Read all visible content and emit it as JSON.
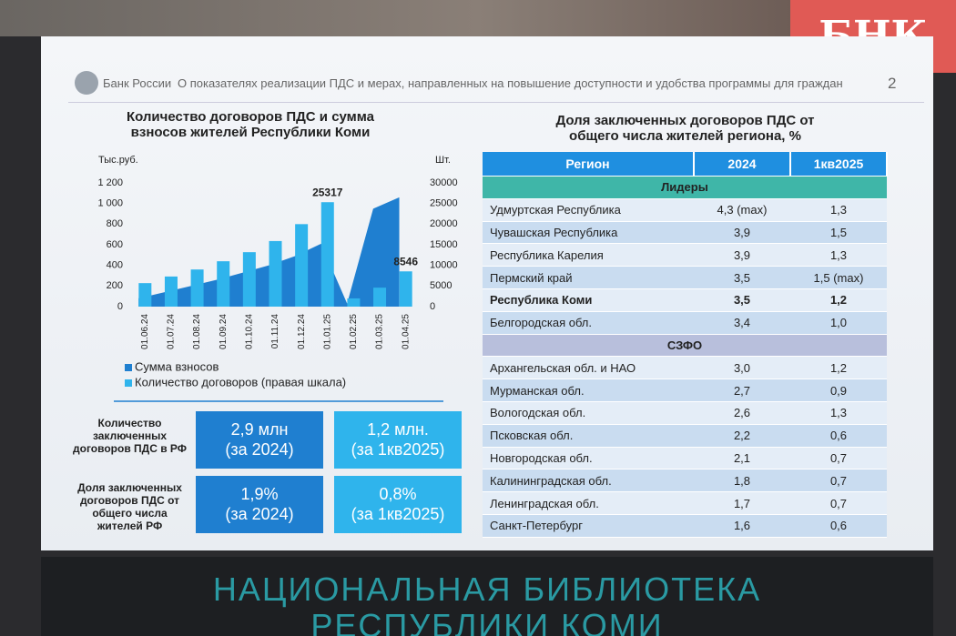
{
  "logo": "БНК",
  "slide": {
    "org": "Банк России",
    "header": "О показателях реализации ПДС и мерах, направленных на повышение доступности и удобства программы для граждан",
    "page": "2"
  },
  "chart_data": {
    "type": "combo",
    "title": "Количество договоров ПДС и сумма взносов жителей Республики Коми",
    "y_unit": "Тыс.руб.",
    "y2_unit": "Шт.",
    "categories": [
      "01.06.24",
      "01.07.24",
      "01.08.24",
      "01.09.24",
      "01.10.24",
      "01.11.24",
      "01.12.24",
      "01.01.25",
      "01.02.25",
      "01.03.25",
      "01.04.25"
    ],
    "series": [
      {
        "name": "Сумма взносов",
        "type": "area",
        "color": "#1f7fd0",
        "values": [
          80,
          140,
          200,
          260,
          330,
          400,
          490,
          610,
          30,
          950,
          1060
        ]
      },
      {
        "name": "Количество договоров (правая шкала)",
        "type": "bar",
        "axis": "y2",
        "color": "#2fb4ec",
        "values": [
          5700,
          7300,
          9000,
          11000,
          13200,
          15900,
          20000,
          25317,
          2000,
          4600,
          8546
        ],
        "value_labels": [
          null,
          null,
          null,
          null,
          null,
          null,
          null,
          "25317",
          null,
          null,
          "8546"
        ]
      }
    ],
    "ylim": [
      0,
      1200
    ],
    "yticks": [
      0,
      200,
      400,
      600,
      800,
      {
        "value": 1000,
        "label": "1 000"
      },
      {
        "value": 1200,
        "label": "1 200"
      }
    ],
    "y2lim": [
      0,
      30000
    ],
    "y2ticks": [
      0,
      5000,
      10000,
      15000,
      20000,
      25000,
      30000
    ],
    "legend": "bottom-left"
  },
  "stats": {
    "rows": [
      {
        "label": "Количество заключенных договоров ПДС в РФ",
        "boxes": [
          {
            "value": "2,9 млн",
            "note": "(за 2024)",
            "color": "#1f7fd0"
          },
          {
            "value": "1,2 млн.",
            "note": "(за 1кв2025)",
            "color": "#2fb4ec"
          }
        ]
      },
      {
        "label": "Доля заключенных договоров ПДС от общего числа жителей РФ",
        "boxes": [
          {
            "value": "1,9%",
            "note": "(за 2024)",
            "color": "#1f7fd0"
          },
          {
            "value": "0,8%",
            "note": "(за 1кв2025)",
            "color": "#2fb4ec"
          }
        ]
      }
    ]
  },
  "table": {
    "title": "Доля заключенных договоров ПДС от общего числа жителей региона, %",
    "header": [
      "Регион",
      "2024",
      "1кв2025"
    ],
    "sections": [
      {
        "title": "Лидеры",
        "color": "#3fb6a8",
        "bold_rows": [
          4
        ],
        "rows": [
          [
            "Удмуртская Республика",
            "4,3 (max)",
            "1,3"
          ],
          [
            "Чувашская Республика",
            "3,9",
            "1,5"
          ],
          [
            "Республика Карелия",
            "3,9",
            "1,3"
          ],
          [
            "Пермский край",
            "3,5",
            "1,5 (max)"
          ],
          [
            "Республика Коми",
            "3,5",
            "1,2"
          ],
          [
            "Белгородская обл.",
            "3,4",
            "1,0"
          ]
        ]
      },
      {
        "title": "СЗФО",
        "color": "#b8bfdc",
        "bold_rows": [],
        "rows": [
          [
            "Архангельская обл. и НАО",
            "3,0",
            "1,2"
          ],
          [
            "Мурманская обл.",
            "2,7",
            "0,9"
          ],
          [
            "Вологодская обл.",
            "2,6",
            "1,3"
          ],
          [
            "Псковская обл.",
            "2,2",
            "0,6"
          ],
          [
            "Новгородская обл.",
            "2,1",
            "0,7"
          ],
          [
            "Калининградская обл.",
            "1,8",
            "0,7"
          ],
          [
            "Ленинградская обл.",
            "1,7",
            "0,7"
          ],
          [
            "Санкт-Петербург",
            "1,6",
            "0,6"
          ]
        ]
      }
    ]
  },
  "banner": [
    "НАЦИОНАЛЬНАЯ БИБЛИОТЕКА",
    "РЕСПУБЛИКИ КОМИ"
  ]
}
